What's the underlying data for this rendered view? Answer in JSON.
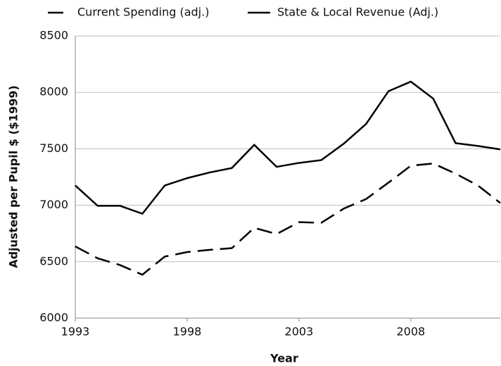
{
  "chart_data": {
    "type": "line",
    "x_label": "Year",
    "y_label": "Adjusted per Pupil  $ ($1999)",
    "x": [
      1993,
      1994,
      1995,
      1996,
      1997,
      1998,
      1999,
      2000,
      2001,
      2002,
      2003,
      2004,
      2005,
      2006,
      2007,
      2008,
      2009,
      2010,
      2011,
      2012
    ],
    "series": [
      {
        "name": "Current Spending (adj.)",
        "color": "#000000",
        "line_style": "dashed",
        "values": [
          6635,
          6530,
          6470,
          6385,
          6545,
          6585,
          6605,
          6620,
          6800,
          6745,
          6850,
          6845,
          6970,
          7055,
          7200,
          7350,
          7370,
          7280,
          7175,
          7020
        ]
      },
      {
        "name": "State & Local Revenue (Adj.)",
        "color": "#000000",
        "line_style": "solid",
        "values": [
          7175,
          6995,
          6995,
          6925,
          7175,
          7240,
          7290,
          7330,
          7535,
          7340,
          7375,
          7400,
          7545,
          7720,
          8010,
          8095,
          7945,
          7550,
          7525,
          7495
        ]
      }
    ],
    "xlim": [
      1993,
      2012
    ],
    "xticks": [
      1993,
      1998,
      2003,
      2008
    ],
    "ylim": [
      6000,
      8500
    ],
    "yticks": [
      6000,
      6500,
      7000,
      7500,
      8000,
      8500
    ],
    "grid": true,
    "legend": "top"
  }
}
